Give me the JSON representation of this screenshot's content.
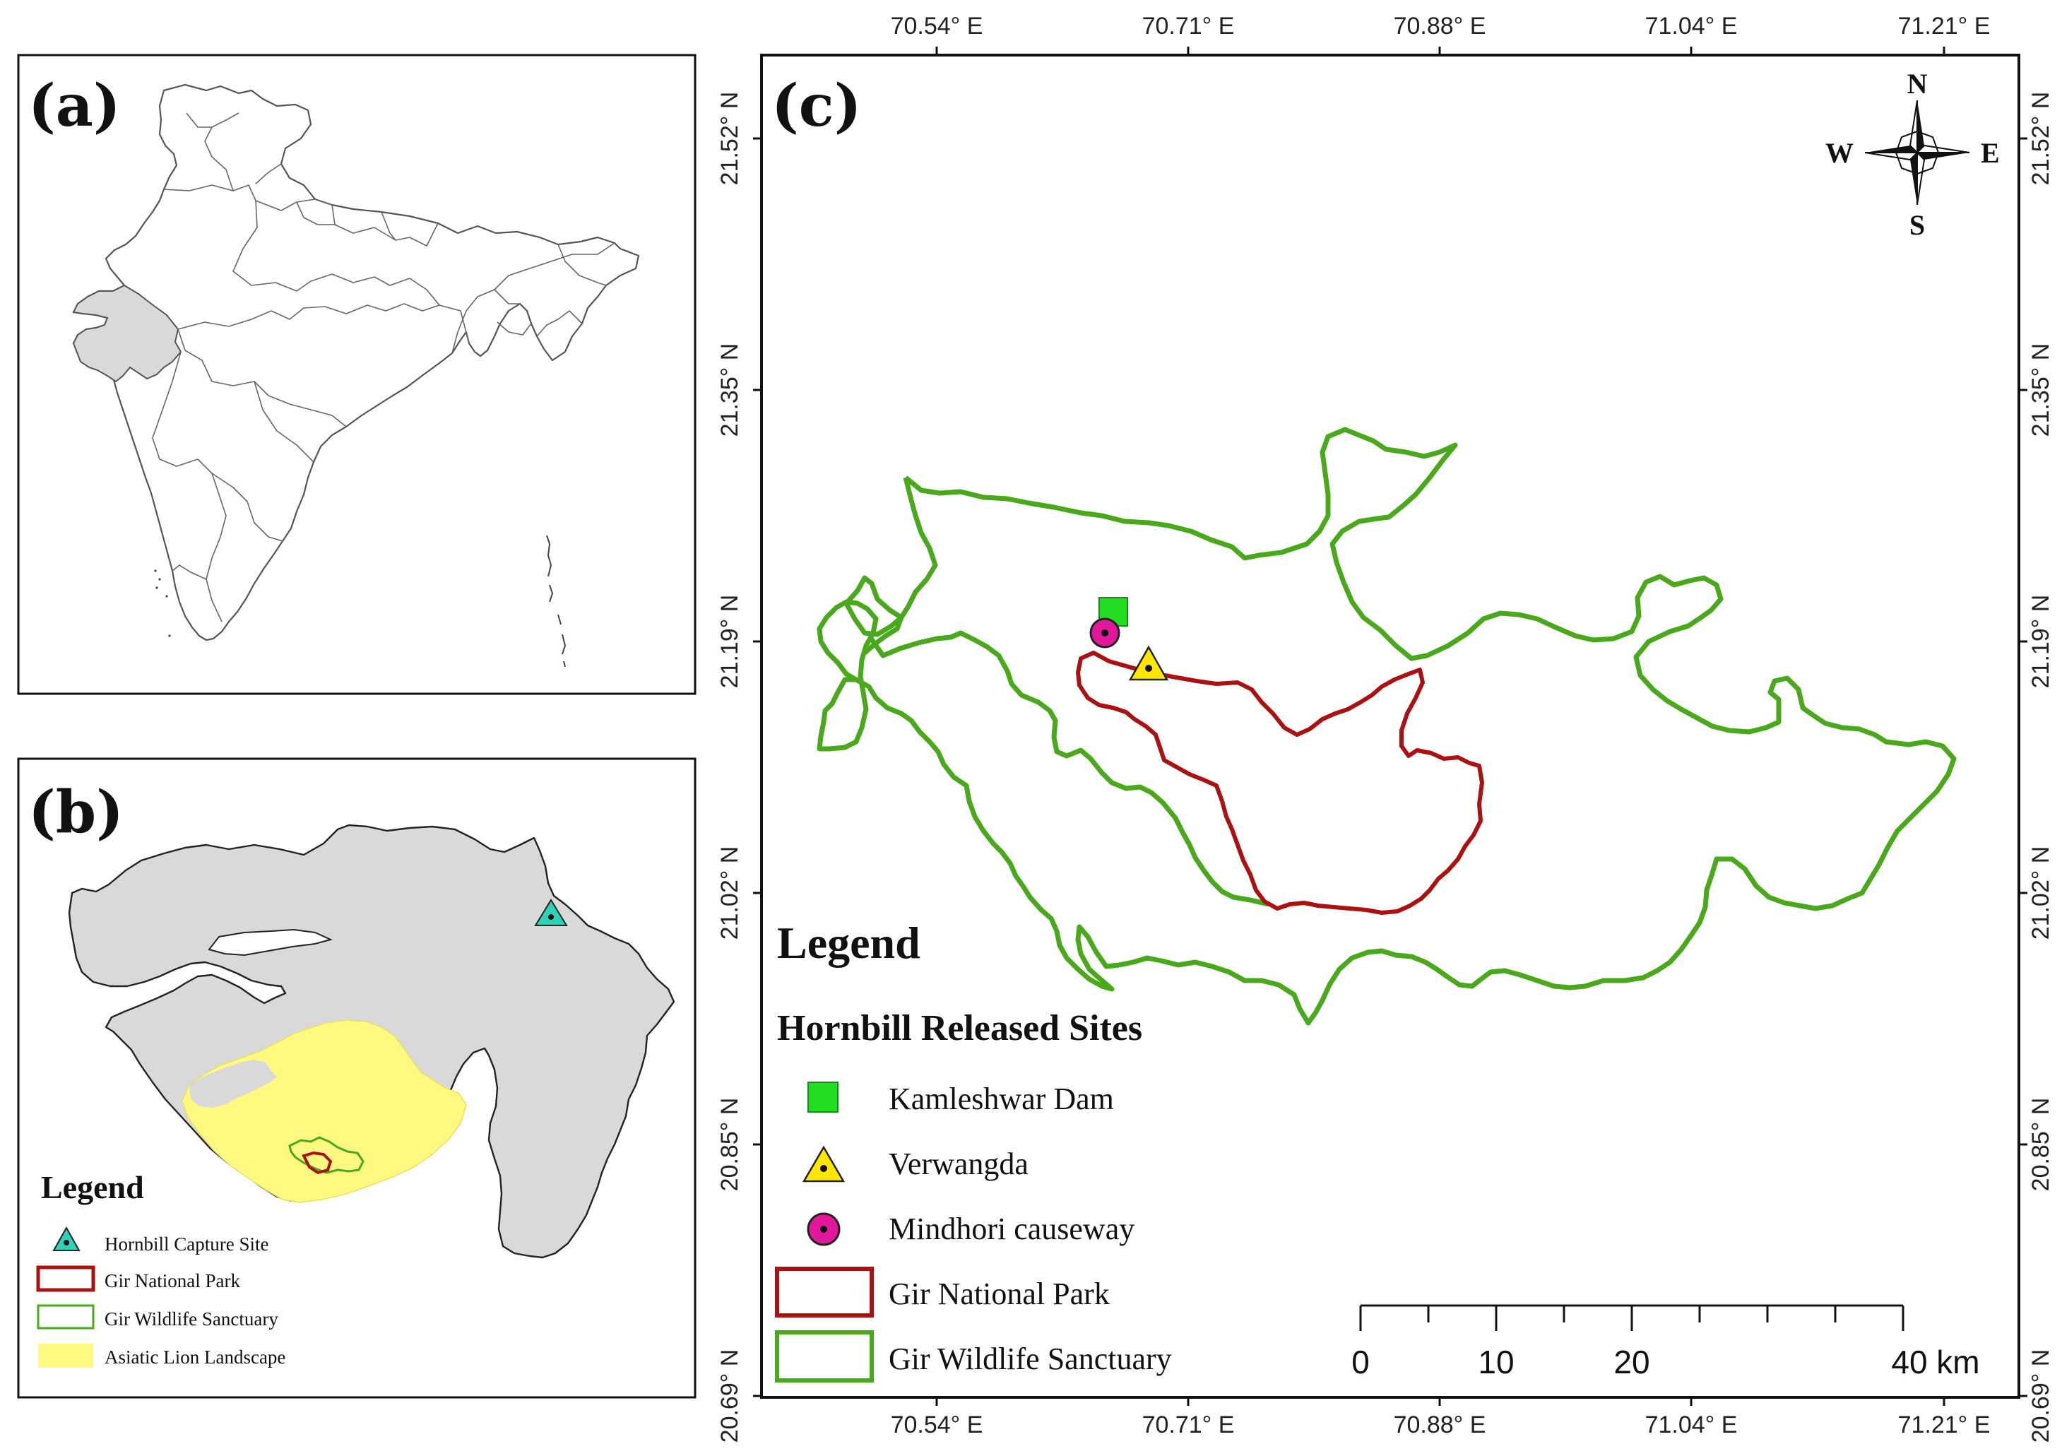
{
  "panels": {
    "a": {
      "label": "(a)"
    },
    "b": {
      "label": "(b)",
      "legend": {
        "title": "Legend",
        "items": [
          {
            "label": "Hornbill Capture Site",
            "symbol": "triangle",
            "color": "#2ed3b7"
          },
          {
            "label": "Gir National Park",
            "symbol": "outline",
            "color": "#aa1111"
          },
          {
            "label": "Gir Wildlife Sanctuary",
            "symbol": "outline",
            "color": "#4aa81c"
          },
          {
            "label": "Asiatic Lion Landscape",
            "symbol": "fill",
            "color": "#fff982"
          }
        ]
      }
    },
    "c": {
      "label": "(c)",
      "lon_ticks": [
        "70.54° E",
        "70.71° E",
        "70.88° E",
        "71.04° E",
        "71.21° E"
      ],
      "lat_ticks": [
        "21.52° N",
        "21.35° N",
        "21.19° N",
        "21.02° N",
        "20.85° N",
        "20.69° N"
      ],
      "compass": {
        "n": "N",
        "s": "S",
        "e": "E",
        "w": "W"
      },
      "legend": {
        "title": "Legend",
        "subtitle": "Hornbill Released Sites",
        "items": [
          {
            "label": "Kamleshwar Dam",
            "symbol": "square",
            "color": "#22dd22"
          },
          {
            "label": "Verwangda",
            "symbol": "triangle",
            "color": "#ffe600"
          },
          {
            "label": "Mindhori causeway",
            "symbol": "circle",
            "color": "#e0189a"
          },
          {
            "label": "Gir National Park",
            "symbol": "outline",
            "color": "#aa1111"
          },
          {
            "label": "Gir Wildlife Sanctuary",
            "symbol": "outline",
            "color": "#4aa81c"
          }
        ]
      },
      "scale_bar": {
        "labels": [
          "0",
          "10",
          "20",
          "40 km"
        ]
      }
    }
  },
  "colors": {
    "sanctuary": "#4aa81c",
    "national_park": "#aa1111",
    "state_fill": "#d9d9d9",
    "lion_landscape": "#fff982",
    "capture_site": "#2ed3b7"
  }
}
